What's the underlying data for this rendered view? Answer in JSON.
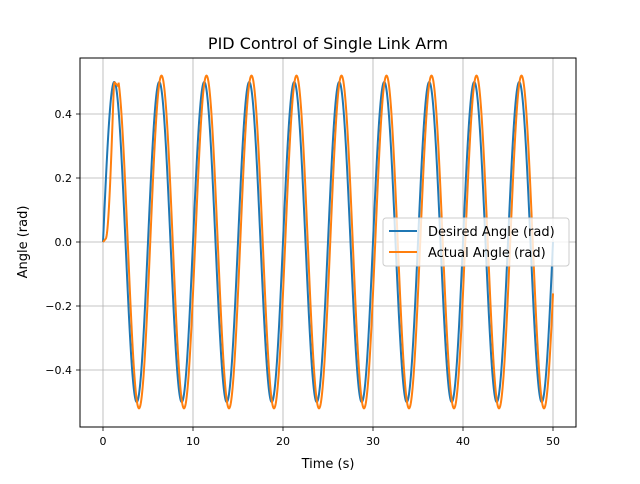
{
  "chart_data": {
    "type": "line",
    "title": "PID Control of Single Link Arm",
    "xlabel": "Time (s)",
    "ylabel": "Angle (rad)",
    "xlim": [
      -2.5,
      52.5
    ],
    "ylim": [
      -0.575,
      0.575
    ],
    "xticks": [
      0,
      10,
      20,
      30,
      40,
      50
    ],
    "xtick_labels": [
      "0",
      "10",
      "20",
      "30",
      "40",
      "50"
    ],
    "yticks": [
      -0.4,
      -0.2,
      0.0,
      0.2,
      0.4
    ],
    "ytick_labels": [
      "−0.4",
      "−0.2",
      "0.0",
      "0.2",
      "0.4"
    ],
    "grid": true,
    "legend_position": "center right",
    "series": [
      {
        "name": "Desired Angle (rad)",
        "color": "#1f77b4",
        "description": "0.5*sin(2*pi*t/5), t from 0 to 50 s",
        "amplitude": 0.5,
        "period": 5,
        "x": [
          0,
          1.25,
          2.5,
          3.75,
          5,
          6.25,
          7.5,
          8.75,
          10,
          11.25,
          12.5,
          13.75,
          15,
          16.25,
          17.5,
          18.75,
          20,
          21.25,
          22.5,
          23.75,
          25,
          26.25,
          27.5,
          28.75,
          30,
          31.25,
          32.5,
          33.75,
          35,
          36.25,
          37.5,
          38.75,
          40,
          41.25,
          42.5,
          43.75,
          45,
          46.25,
          47.5,
          48.75,
          50
        ],
        "values": [
          0,
          0.5,
          0,
          -0.5,
          0,
          0.5,
          0,
          -0.5,
          0,
          0.5,
          0,
          -0.5,
          0,
          0.5,
          0,
          -0.5,
          0,
          0.5,
          0,
          -0.5,
          0,
          0.5,
          0,
          -0.5,
          0,
          0.5,
          0,
          -0.5,
          0,
          0.5,
          0,
          -0.5,
          0,
          0.5,
          0,
          -0.5,
          0,
          0.5,
          0,
          -0.5,
          0
        ]
      },
      {
        "name": "Actual Angle (rad)",
        "color": "#ff7f0e",
        "description": "Tracks desired with slight lag and overshoot; amplitude ~0.52, initial peak ~0.50 at t~1.2",
        "amplitude": 0.52,
        "lag": 0.25,
        "x": [
          0,
          0.3,
          1.2,
          2.0,
          4.0,
          6.5,
          9.0,
          11.5,
          14.0,
          16.5,
          19.0,
          21.5,
          24.0,
          26.5,
          29.0,
          31.5,
          34.0,
          36.5,
          39.0,
          41.5,
          44.0,
          46.5,
          49.0,
          50
        ],
        "values": [
          0,
          0.01,
          0.5,
          0.48,
          -0.52,
          0.52,
          -0.52,
          0.52,
          -0.52,
          0.52,
          -0.52,
          0.52,
          -0.52,
          0.52,
          -0.52,
          0.52,
          -0.52,
          0.52,
          -0.52,
          0.52,
          -0.52,
          0.52,
          -0.52,
          -0.17
        ]
      }
    ]
  }
}
